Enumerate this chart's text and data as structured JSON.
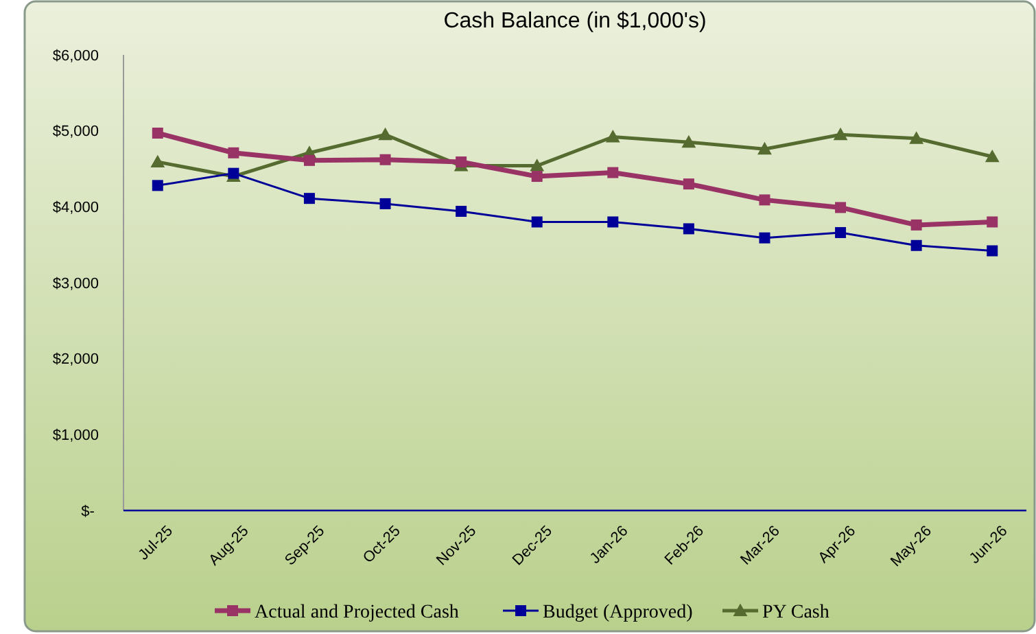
{
  "chart_data": {
    "type": "line",
    "title": "Cash Balance (in $1,000's)",
    "categories": [
      "Jul-25",
      "Aug-25",
      "Sep-25",
      "Oct-25",
      "Nov-25",
      "Dec-25",
      "Jan-26",
      "Feb-26",
      "Mar-26",
      "Apr-26",
      "May-26",
      "Jun-26"
    ],
    "series": [
      {
        "name": "Actual and Projected Cash",
        "color": "#993366",
        "marker": "square",
        "values": [
          4970,
          4710,
          4610,
          4620,
          4590,
          4400,
          4450,
          4300,
          4090,
          3990,
          3760,
          3800
        ]
      },
      {
        "name": "Budget (Approved)",
        "color": "#000099",
        "marker": "square",
        "values": [
          4280,
          4440,
          4110,
          4040,
          3940,
          3800,
          3800,
          3710,
          3590,
          3660,
          3490,
          3420
        ]
      },
      {
        "name": "PY Cash",
        "color": "#556b2f",
        "marker": "triangle",
        "values": [
          4590,
          4400,
          4710,
          4950,
          4540,
          4540,
          4920,
          4850,
          4760,
          4950,
          4900,
          4660
        ]
      }
    ],
    "ylim": [
      0,
      6000
    ],
    "yticks": [
      {
        "value": 0,
        "label": "$-"
      },
      {
        "value": 1000,
        "label": "$1,000"
      },
      {
        "value": 2000,
        "label": "$2,000"
      },
      {
        "value": 3000,
        "label": "$3,000"
      },
      {
        "value": 4000,
        "label": "$4,000"
      },
      {
        "value": 5000,
        "label": "$5,000"
      },
      {
        "value": 6000,
        "label": "$6,000"
      }
    ],
    "grid": false,
    "legend": "bottom"
  }
}
